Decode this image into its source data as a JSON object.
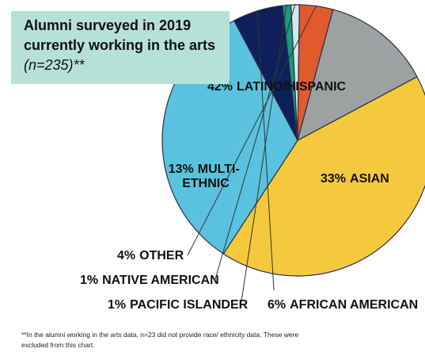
{
  "title": {
    "main": "Alumni surveyed in 2019 currently working in the arts",
    "note": "(n=235)**"
  },
  "footnote": "**In the alumni working in the arts data, n=23 did not provide race/ ethnicity data. These were excluded from this chart.",
  "chart_data": {
    "type": "pie",
    "title": "Alumni surveyed in 2019 currently working in the arts (n=235)**",
    "slices": [
      {
        "label": "LATINO/HISPANIC",
        "pct_label": "42%",
        "value": 42,
        "color": "#f4c93e"
      },
      {
        "label": "ASIAN",
        "pct_label": "33%",
        "value": 33,
        "color": "#5ac2df"
      },
      {
        "label": "AFRICAN AMERICAN",
        "pct_label": "6%",
        "value": 6,
        "color": "#0d2059"
      },
      {
        "label": "PACIFIC ISLANDER",
        "pct_label": "1%",
        "value": 1,
        "color": "#1b9a7d"
      },
      {
        "label": "NATIVE AMERICAN",
        "pct_label": "1%",
        "value": 1,
        "color": "#d2e8e8"
      },
      {
        "label": "OTHER",
        "pct_label": "4%",
        "value": 4,
        "color": "#e15a2e"
      },
      {
        "label": "MULTI-ETHNIC",
        "pct_label": "13%",
        "value": 13,
        "color": "#9ea1a2"
      }
    ]
  }
}
